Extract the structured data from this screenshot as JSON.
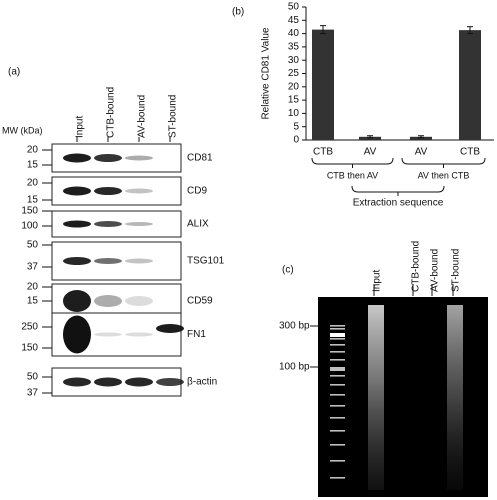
{
  "panel_a": {
    "label": "(a)",
    "mw_header": "MW (kDa)",
    "lanes": [
      "Input",
      "CTB-bound",
      "AV-bound",
      "ST-bound"
    ],
    "rows": [
      {
        "protein": "CD81",
        "mw": [
          20,
          15
        ]
      },
      {
        "protein": "CD9",
        "mw": [
          20,
          15
        ]
      },
      {
        "protein": "ALIX",
        "mw": [
          150,
          100
        ]
      },
      {
        "protein": "TSG101",
        "mw": [
          50,
          37
        ]
      },
      {
        "protein": "CD59",
        "mw": [
          20,
          15
        ]
      },
      {
        "protein": "FN1",
        "mw": [
          250,
          150
        ]
      },
      {
        "protein": "β-actin",
        "mw": [
          50,
          37
        ]
      }
    ]
  },
  "chart_data": {
    "type": "bar",
    "panel_label": "(b)",
    "ylabel": "Relative CD81 Value",
    "categories": [
      "CTB",
      "AV",
      "AV",
      "CTB"
    ],
    "values": [
      41.5,
      1.2,
      1.2,
      41.3
    ],
    "errors": [
      1.5,
      0.4,
      0.4,
      1.3
    ],
    "color": "#333333",
    "ylim": [
      0,
      50
    ],
    "yticks": [
      0,
      5,
      10,
      15,
      20,
      25,
      30,
      35,
      40,
      45,
      50
    ],
    "groups": [
      "CTB then AV",
      "AV then CTB"
    ],
    "xlabel": "Extraction sequence"
  },
  "panel_c": {
    "label": "(c)",
    "lanes": [
      "Input",
      "CTB-bound",
      "AV-bound",
      "ST-bound"
    ],
    "markers": [
      "300 bp",
      "100 bp"
    ]
  }
}
